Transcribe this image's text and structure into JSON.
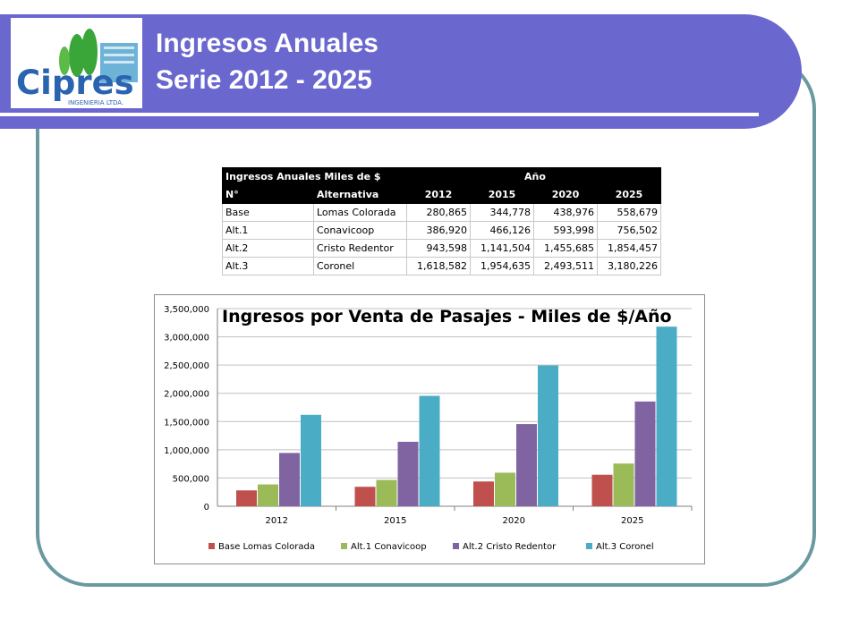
{
  "slide": {
    "title_line1": "Ingresos Anuales",
    "title_line2": "Serie 2012 - 2025"
  },
  "logo": {
    "name": "Cipres",
    "subtitle": "INGENIERIA LTDA.",
    "colors": {
      "text": "#2a63b0",
      "tree": "#3aa63a",
      "building": "#6db3d8"
    }
  },
  "table": {
    "title": "Ingresos Anuales Miles de $",
    "year_group": "Año",
    "headers": [
      "N°",
      "Alternativa",
      "2012",
      "2015",
      "2020",
      "2025"
    ],
    "rows": [
      [
        "Base",
        "Lomas Colorada",
        "280,865",
        "344,778",
        "438,976",
        "558,679"
      ],
      [
        "Alt.1",
        "Conavicoop",
        "386,920",
        "466,126",
        "593,998",
        "756,502"
      ],
      [
        "Alt.2",
        "Cristo Redentor",
        "943,598",
        "1,141,504",
        "1,455,685",
        "1,854,457"
      ],
      [
        "Alt.3",
        "Coronel",
        "1,618,582",
        "1,954,635",
        "2,493,511",
        "3,180,226"
      ]
    ]
  },
  "chart_data": {
    "type": "bar",
    "title": "Ingresos por Venta de Pasajes - Miles de $/Año",
    "categories": [
      "2012",
      "2015",
      "2020",
      "2025"
    ],
    "series": [
      {
        "name": "Base Lomas Colorada",
        "values": [
          280865,
          344778,
          438976,
          558679
        ],
        "color": "#c0504d"
      },
      {
        "name": "Alt.1 Conavicoop",
        "values": [
          386920,
          466126,
          593998,
          756502
        ],
        "color": "#9bbb59"
      },
      {
        "name": "Alt.2 Cristo Redentor",
        "values": [
          943598,
          1141504,
          1455685,
          1854457
        ],
        "color": "#8064a2"
      },
      {
        "name": "Alt.3 Coronel",
        "values": [
          1618582,
          1954635,
          2493511,
          3180226
        ],
        "color": "#4bacc6"
      }
    ],
    "ylim": [
      0,
      3500000
    ],
    "yticks": [
      "0",
      "500,000",
      "1,000,000",
      "1,500,000",
      "2,000,000",
      "2,500,000",
      "3,000,000",
      "3,500,000"
    ],
    "grid": true,
    "legend": "bottom"
  }
}
